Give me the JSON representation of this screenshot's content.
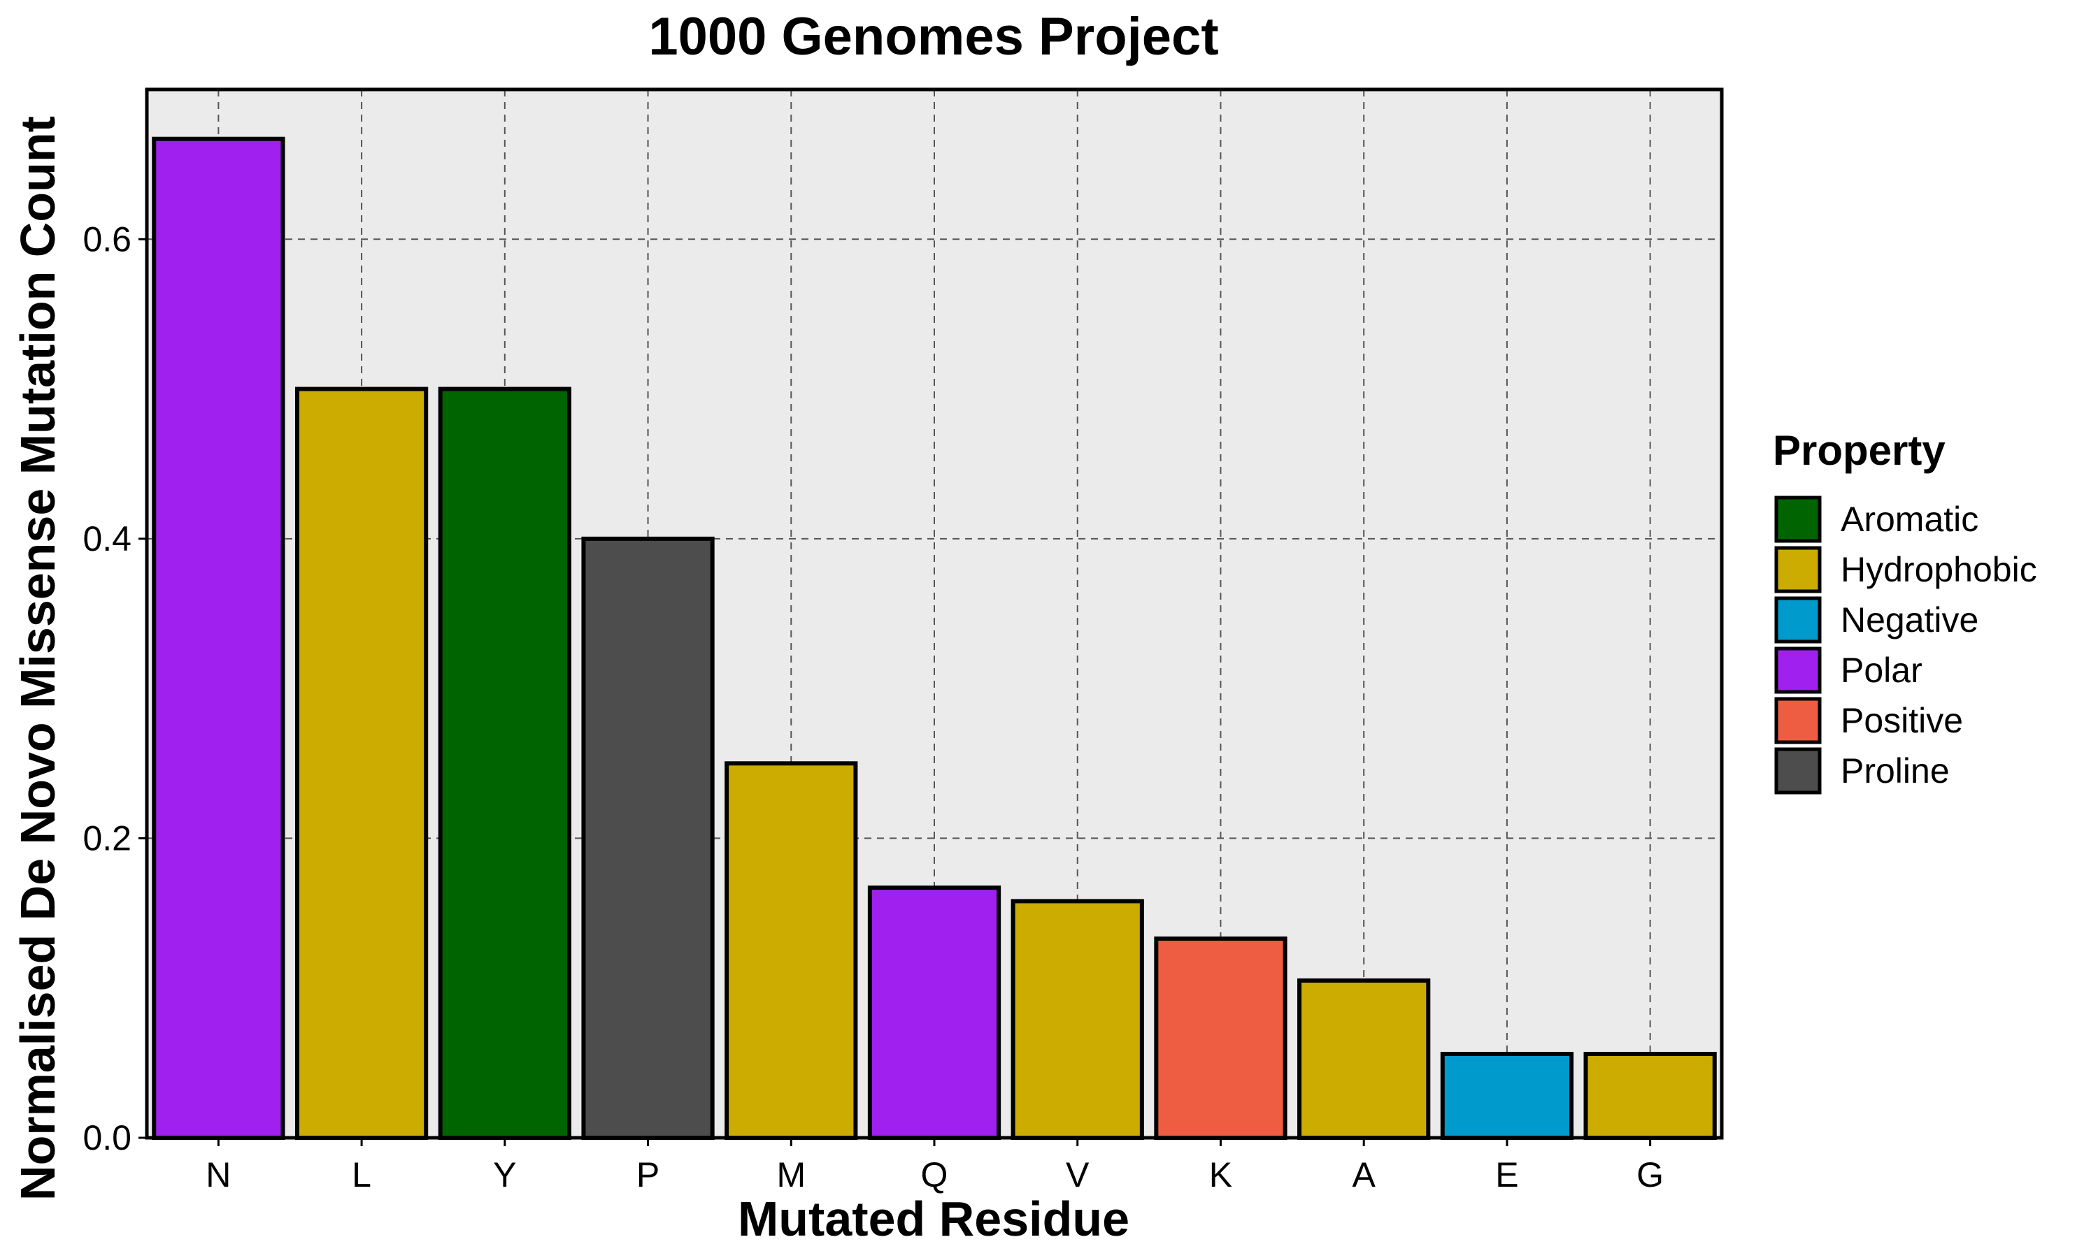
{
  "chart_data": {
    "type": "bar",
    "title": "1000 Genomes Project",
    "xlabel": "Mutated Residue",
    "ylabel": "Normalised De Novo Missense Mutation Count",
    "categories": [
      "N",
      "L",
      "Y",
      "P",
      "M",
      "Q",
      "V",
      "K",
      "A",
      "E",
      "G"
    ],
    "values": [
      0.667,
      0.5,
      0.5,
      0.4,
      0.25,
      0.167,
      0.158,
      0.133,
      0.105,
      0.056,
      0.056
    ],
    "properties": [
      "Polar",
      "Hydrophobic",
      "Aromatic",
      "Proline",
      "Hydrophobic",
      "Polar",
      "Hydrophobic",
      "Positive",
      "Hydrophobic",
      "Negative",
      "Hydrophobic"
    ],
    "ylim": [
      0,
      0.7
    ],
    "yticks": [
      0.0,
      0.2,
      0.4,
      0.6
    ],
    "ytick_labels": [
      "0.0",
      "0.2",
      "0.4",
      "0.6"
    ],
    "grid": true,
    "legend_position": "right",
    "legend": {
      "title": "Property",
      "entries": [
        {
          "label": "Aromatic",
          "color": "#006400"
        },
        {
          "label": "Hydrophobic",
          "color": "#CCAC00"
        },
        {
          "label": "Negative",
          "color": "#009ACD"
        },
        {
          "label": "Polar",
          "color": "#A020F0"
        },
        {
          "label": "Positive",
          "color": "#EE5C42"
        },
        {
          "label": "Proline",
          "color": "#4D4D4D"
        }
      ]
    },
    "panel_background": "#EBEBEB"
  }
}
